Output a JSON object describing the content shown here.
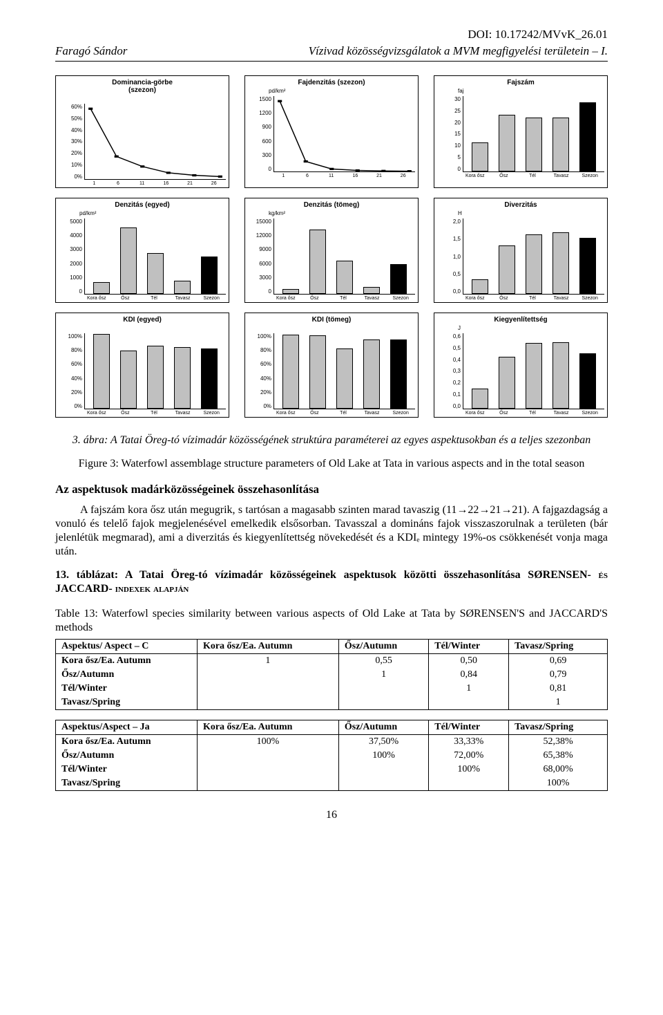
{
  "doi": "DOI: 10.17242/MVvK_26.01",
  "header": {
    "author": "Faragó Sándor",
    "title": "Vízivad közösségvizsgálatok a MVM megfigyelési területein – I."
  },
  "chart_common": {
    "season_labels": [
      "Kora ősz",
      "Ősz",
      "Tél",
      "Tavasz",
      "Szezon"
    ],
    "numeric_x": [
      "1",
      "6",
      "11",
      "16",
      "21",
      "26"
    ],
    "bar_color": "#c0c0c0",
    "season_bar_color": "#000000",
    "axis_color": "#000000",
    "bg_color": "#ffffff",
    "font_family": "Arial",
    "title_fontsize": 10,
    "tick_fontsize": 8
  },
  "charts": {
    "dominancia": {
      "title": "Dominancia-görbe\n(szezon)",
      "type": "line",
      "unit": "",
      "yticks": [
        "60%",
        "50%",
        "40%",
        "30%",
        "20%",
        "10%",
        "0%"
      ],
      "ymax_pct": 60,
      "x": [
        "1",
        "6",
        "11",
        "16",
        "21",
        "26"
      ],
      "line_points_pct": [
        56,
        18,
        10,
        5,
        3,
        2
      ],
      "line_color": "#000000",
      "line_width": 1.5
    },
    "fajdenzitas": {
      "title": "Fajdenzitás (szezon)",
      "type": "line",
      "unit": "pd/km²",
      "yticks": [
        "1500",
        "1200",
        "900",
        "600",
        "300",
        "0"
      ],
      "ymax": 1500,
      "x": [
        "1",
        "6",
        "11",
        "16",
        "21",
        "26"
      ],
      "line_points": [
        1400,
        200,
        50,
        20,
        10,
        5
      ],
      "line_color": "#000000",
      "line_width": 1.5
    },
    "fajszam": {
      "title": "Fajszám",
      "type": "bar",
      "unit": "faj",
      "yticks": [
        "30",
        "25",
        "20",
        "15",
        "10",
        "5",
        "0"
      ],
      "ymax": 30,
      "values": [
        11,
        22,
        21,
        21,
        27
      ],
      "x": "seasons"
    },
    "denzitas_egyed": {
      "title": "Denzitás (egyed)",
      "type": "bar",
      "unit": "pd/km²",
      "yticks": [
        "5000",
        "4000",
        "3000",
        "2000",
        "1000",
        "0"
      ],
      "ymax": 5000,
      "values": [
        700,
        4300,
        2600,
        800,
        2400
      ],
      "x": "seasons"
    },
    "denzitas_tomeg": {
      "title": "Denzitás (tömeg)",
      "type": "bar",
      "unit": "kg/km²",
      "yticks": [
        "15000",
        "12000",
        "9000",
        "6000",
        "3000",
        "0"
      ],
      "ymax": 15000,
      "values": [
        700,
        12500,
        6300,
        1100,
        5700
      ],
      "x": "seasons"
    },
    "diverzitas": {
      "title": "Diverzitás",
      "type": "bar",
      "unit": "H",
      "yticks": [
        "2,0",
        "1,5",
        "1,0",
        "0,5",
        "0,0"
      ],
      "ymax": 2.0,
      "values": [
        0.35,
        1.25,
        1.55,
        1.6,
        1.45
      ],
      "x": "seasons"
    },
    "kdi_egyed": {
      "title": "KDI (egyed)",
      "type": "bar",
      "unit": "",
      "yticks": [
        "100%",
        "80%",
        "60%",
        "40%",
        "20%",
        "0%"
      ],
      "ymax": 100,
      "values": [
        97,
        75,
        82,
        80,
        78
      ],
      "x": "seasons"
    },
    "kdi_tomeg": {
      "title": "KDI (tömeg)",
      "type": "bar",
      "unit": "",
      "yticks": [
        "100%",
        "80%",
        "60%",
        "40%",
        "20%",
        "0%"
      ],
      "ymax": 100,
      "values": [
        96,
        95,
        78,
        90,
        90
      ],
      "x": "seasons"
    },
    "kiegyenlitettseg": {
      "title": "Kiegyenlítettség",
      "type": "bar",
      "unit": "J",
      "yticks": [
        "0,6",
        "0,5",
        "0,4",
        "0,3",
        "0,2",
        "0,1",
        "0,0"
      ],
      "ymax": 0.6,
      "values": [
        0.15,
        0.4,
        0.51,
        0.52,
        0.43
      ],
      "x": "seasons"
    }
  },
  "figure_caption": {
    "hu": "3. ábra: A Tatai Öreg-tó vízimadár közösségének struktúra paraméterei az egyes aspektusokban és a teljes szezonban",
    "en": "Figure 3: Waterfowl assemblage structure parameters of Old Lake at Tata in various aspects and in the total season"
  },
  "section_heading": "Az aspektusok madárközösségeinek összehasonlítása",
  "body_text": "A fajszám kora ősz után megugrik, s tartósan a magasabb szinten marad tavaszig (11→22→21→21). A fajgazdagság a vonuló és telelő fajok megjelenésével emelkedik elsősorban. Tavasszal a domináns fajok visszaszorulnak a területen (bár jelenlétük megmarad), ami a diverzitás és kiegyenlítettség növekedését és a KDIₑ mintegy 19%-os csökkenését vonja maga után.",
  "table_caption": {
    "hu_bold": "13. táblázat: A Tatai Öreg-tó vízimadár közösségeinek aspektusok közötti összehasonlítása ",
    "hu_idx": "SØRENSEN- és JACCARD- indexek alapján",
    "en": "Table 13: Waterfowl species similarity between various aspects of Old Lake at Tata by SØRENSEN'S and JACCARD'S methods"
  },
  "table_sorensen": {
    "header": [
      "Aspektus/ Aspect – C",
      "Kora ősz/Ea. Autumn",
      "Ősz/Autumn",
      "Tél/Winter",
      "Tavasz/Spring"
    ],
    "rows": [
      [
        "Kora ősz/Ea. Autumn",
        "1",
        "0,55",
        "0,50",
        "0,69"
      ],
      [
        "Ősz/Autumn",
        "",
        "1",
        "0,84",
        "0,79"
      ],
      [
        "Tél/Winter",
        "",
        "",
        "1",
        "0,81"
      ],
      [
        "Tavasz/Spring",
        "",
        "",
        "",
        "1"
      ]
    ]
  },
  "table_jaccard": {
    "header": [
      "Aspektus/Aspect – Ja",
      "Kora ősz/Ea. Autumn",
      "Ősz/Autumn",
      "Tél/Winter",
      "Tavasz/Spring"
    ],
    "rows": [
      [
        "Kora ősz/Ea. Autumn",
        "100%",
        "37,50%",
        "33,33%",
        "52,38%"
      ],
      [
        "Ősz/Autumn",
        "",
        "100%",
        "72,00%",
        "65,38%"
      ],
      [
        "Tél/Winter",
        "",
        "",
        "100%",
        "68,00%"
      ],
      [
        "Tavasz/Spring",
        "",
        "",
        "",
        "100%"
      ]
    ]
  },
  "page_number": "16"
}
